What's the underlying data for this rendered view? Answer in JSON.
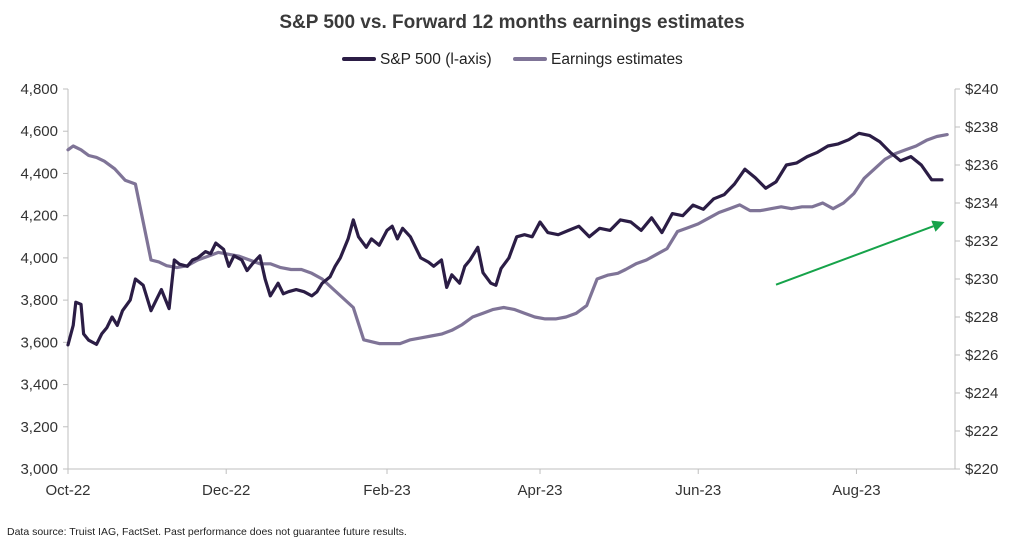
{
  "chart_data": {
    "type": "line",
    "title": "S&P 500 vs. Forward 12 months earnings estimates",
    "legend_position": "top-center",
    "grid": false,
    "x_range": [
      "2022-10-01",
      "2023-09-08"
    ],
    "x_ticks": [
      "Oct-22",
      "Dec-22",
      "Feb-23",
      "Apr-23",
      "Jun-23",
      "Aug-23"
    ],
    "y_left": {
      "range": [
        3000,
        4800
      ],
      "ticks": [
        "3,000",
        "3,200",
        "3,400",
        "3,600",
        "3,800",
        "4,000",
        "4,200",
        "4,400",
        "4,600",
        "4,800"
      ]
    },
    "y_right": {
      "range": [
        220,
        240
      ],
      "ticks": [
        "$220",
        "$222",
        "$224",
        "$226",
        "$228",
        "$230",
        "$232",
        "$234",
        "$236",
        "$238",
        "$240"
      ]
    },
    "series": [
      {
        "name": "S&P 500 (l-axis)",
        "axis": "left",
        "color": "#2b1d45",
        "x": [
          "2022-10-01",
          "2022-10-03",
          "2022-10-04",
          "2022-10-06",
          "2022-10-07",
          "2022-10-09",
          "2022-10-12",
          "2022-10-14",
          "2022-10-16",
          "2022-10-18",
          "2022-10-20",
          "2022-10-22",
          "2022-10-25",
          "2022-10-27",
          "2022-10-30",
          "2022-11-02",
          "2022-11-04",
          "2022-11-06",
          "2022-11-09",
          "2022-11-11",
          "2022-11-13",
          "2022-11-16",
          "2022-11-18",
          "2022-11-20",
          "2022-11-23",
          "2022-11-25",
          "2022-11-27",
          "2022-11-30",
          "2022-12-02",
          "2022-12-04",
          "2022-12-07",
          "2022-12-09",
          "2022-12-11",
          "2022-12-14",
          "2022-12-16",
          "2022-12-18",
          "2022-12-21",
          "2022-12-23",
          "2022-12-25",
          "2022-12-28",
          "2022-12-31",
          "2023-01-03",
          "2023-01-05",
          "2023-01-07",
          "2023-01-10",
          "2023-01-12",
          "2023-01-14",
          "2023-01-17",
          "2023-01-19",
          "2023-01-21",
          "2023-01-24",
          "2023-01-26",
          "2023-01-29",
          "2023-02-01",
          "2023-02-03",
          "2023-02-05",
          "2023-02-07",
          "2023-02-10",
          "2023-02-12",
          "2023-02-14",
          "2023-02-17",
          "2023-02-19",
          "2023-02-22",
          "2023-02-24",
          "2023-02-26",
          "2023-03-01",
          "2023-03-03",
          "2023-03-05",
          "2023-03-08",
          "2023-03-10",
          "2023-03-13",
          "2023-03-15",
          "2023-03-17",
          "2023-03-20",
          "2023-03-23",
          "2023-03-26",
          "2023-03-29",
          "2023-04-01",
          "2023-04-04",
          "2023-04-08",
          "2023-04-12",
          "2023-04-16",
          "2023-04-20",
          "2023-04-24",
          "2023-04-28",
          "2023-05-02",
          "2023-05-06",
          "2023-05-10",
          "2023-05-14",
          "2023-05-18",
          "2023-05-22",
          "2023-05-26",
          "2023-05-30",
          "2023-06-03",
          "2023-06-07",
          "2023-06-11",
          "2023-06-15",
          "2023-06-19",
          "2023-06-23",
          "2023-06-27",
          "2023-07-01",
          "2023-07-05",
          "2023-07-09",
          "2023-07-13",
          "2023-07-17",
          "2023-07-21",
          "2023-07-25",
          "2023-07-29",
          "2023-08-02",
          "2023-08-06",
          "2023-08-10",
          "2023-08-14",
          "2023-08-18",
          "2023-08-22",
          "2023-08-26",
          "2023-08-30",
          "2023-09-03"
        ],
        "values": [
          3588,
          3680,
          3790,
          3780,
          3640,
          3610,
          3590,
          3640,
          3670,
          3720,
          3680,
          3750,
          3800,
          3900,
          3870,
          3750,
          3800,
          3850,
          3760,
          3990,
          3970,
          3960,
          3990,
          4000,
          4030,
          4020,
          4070,
          4040,
          3960,
          4010,
          3990,
          3940,
          3970,
          4010,
          3900,
          3820,
          3880,
          3830,
          3840,
          3850,
          3840,
          3820,
          3840,
          3880,
          3910,
          3960,
          4000,
          4090,
          4180,
          4100,
          4050,
          4090,
          4060,
          4130,
          4150,
          4090,
          4140,
          4100,
          4050,
          4000,
          3980,
          3960,
          3990,
          3860,
          3920,
          3880,
          3960,
          3990,
          4050,
          3930,
          3880,
          3870,
          3950,
          4000,
          4100,
          4110,
          4100,
          4170,
          4120,
          4110,
          4130,
          4150,
          4100,
          4140,
          4130,
          4180,
          4170,
          4130,
          4190,
          4120,
          4210,
          4200,
          4250,
          4230,
          4280,
          4300,
          4350,
          4420,
          4380,
          4330,
          4360,
          4440,
          4450,
          4480,
          4500,
          4530,
          4540,
          4560,
          4590,
          4580,
          4550,
          4500,
          4460,
          4480,
          4440,
          4370,
          4370
        ]
      },
      {
        "name": "Earnings estimates",
        "axis": "right",
        "color": "#7f7497",
        "x": [
          "2022-10-01",
          "2022-10-03",
          "2022-10-06",
          "2022-10-09",
          "2022-10-12",
          "2022-10-15",
          "2022-10-19",
          "2022-10-23",
          "2022-10-27",
          "2022-10-30",
          "2022-11-02",
          "2022-11-05",
          "2022-11-08",
          "2022-11-12",
          "2022-11-16",
          "2022-11-20",
          "2022-11-24",
          "2022-11-28",
          "2022-12-02",
          "2022-12-06",
          "2022-12-10",
          "2022-12-14",
          "2022-12-18",
          "2022-12-22",
          "2022-12-26",
          "2022-12-30",
          "2023-01-03",
          "2023-01-07",
          "2023-01-11",
          "2023-01-15",
          "2023-01-19",
          "2023-01-23",
          "2023-01-26",
          "2023-01-29",
          "2023-02-02",
          "2023-02-06",
          "2023-02-10",
          "2023-02-14",
          "2023-02-18",
          "2023-02-22",
          "2023-02-26",
          "2023-03-02",
          "2023-03-06",
          "2023-03-10",
          "2023-03-14",
          "2023-03-18",
          "2023-03-22",
          "2023-03-26",
          "2023-03-30",
          "2023-04-03",
          "2023-04-07",
          "2023-04-11",
          "2023-04-15",
          "2023-04-19",
          "2023-04-23",
          "2023-04-27",
          "2023-05-01",
          "2023-05-04",
          "2023-05-08",
          "2023-05-12",
          "2023-05-16",
          "2023-05-20",
          "2023-05-24",
          "2023-05-28",
          "2023-06-01",
          "2023-06-05",
          "2023-06-09",
          "2023-06-13",
          "2023-06-17",
          "2023-06-21",
          "2023-06-25",
          "2023-06-29",
          "2023-07-03",
          "2023-07-07",
          "2023-07-11",
          "2023-07-15",
          "2023-07-19",
          "2023-07-23",
          "2023-07-27",
          "2023-07-31",
          "2023-08-04",
          "2023-08-08",
          "2023-08-12",
          "2023-08-16",
          "2023-08-20",
          "2023-08-24",
          "2023-08-28",
          "2023-09-01",
          "2023-09-05"
        ],
        "values": [
          236.8,
          237.0,
          236.8,
          236.5,
          236.4,
          236.2,
          235.8,
          235.2,
          235.0,
          233.0,
          231.0,
          230.9,
          230.7,
          230.6,
          230.7,
          231.0,
          231.2,
          231.4,
          231.3,
          231.2,
          231.0,
          230.8,
          230.8,
          230.6,
          230.5,
          230.5,
          230.3,
          230.0,
          229.5,
          229.0,
          228.5,
          226.8,
          226.7,
          226.6,
          226.6,
          226.6,
          226.8,
          226.9,
          227.0,
          227.1,
          227.3,
          227.6,
          228.0,
          228.2,
          228.4,
          228.5,
          228.4,
          228.2,
          228.0,
          227.9,
          227.9,
          228.0,
          228.2,
          228.6,
          230.0,
          230.2,
          230.3,
          230.5,
          230.8,
          231.0,
          231.3,
          231.6,
          232.5,
          232.7,
          232.9,
          233.2,
          233.5,
          233.7,
          233.9,
          233.6,
          233.6,
          233.7,
          233.8,
          233.7,
          233.8,
          233.8,
          234.0,
          233.7,
          234.0,
          234.5,
          235.3,
          235.8,
          236.3,
          236.6,
          236.8,
          237.0,
          237.3,
          237.5,
          237.6
        ]
      }
    ],
    "annotations": [
      {
        "type": "arrow",
        "color": "#16a34a",
        "from": [
          "2023-07-01",
          229.7
        ],
        "to": [
          "2023-09-04",
          233.0
        ]
      }
    ]
  },
  "footer": {
    "source": "Data source: Truist IAG, FactSet. Past performance does not guarantee future results."
  }
}
